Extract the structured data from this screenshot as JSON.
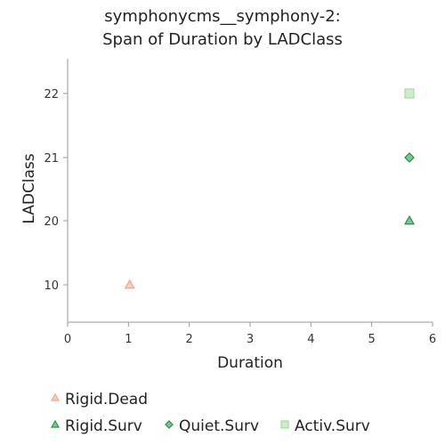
{
  "chart_data": {
    "type": "scatter",
    "title": [
      "symphonycms__symphony-2:",
      "Span of Duration by LADClass"
    ],
    "xlabel": "Duration",
    "ylabel": "LADClass",
    "xlim": [
      0,
      6
    ],
    "x_ticks": [
      "0",
      "1",
      "2",
      "3",
      "4",
      "5",
      "6"
    ],
    "y_categories": [
      "10",
      "20",
      "21",
      "22"
    ],
    "grid": false,
    "legend_position": "bottom",
    "series": [
      {
        "name": "Rigid.Dead",
        "marker": "triangle",
        "color": "#f4a582",
        "points": [
          {
            "x": 1.02,
            "y": "10"
          }
        ]
      },
      {
        "name": "Rigid.Surv",
        "marker": "triangle",
        "color": "#1a9641",
        "points": [
          {
            "x": 5.62,
            "y": "20"
          }
        ]
      },
      {
        "name": "Quiet.Surv",
        "marker": "diamond",
        "color": "#1a9641",
        "points": [
          {
            "x": 5.62,
            "y": "21"
          }
        ]
      },
      {
        "name": "Activ.Surv",
        "marker": "square",
        "color": "#a6dba0",
        "points": [
          {
            "x": 5.62,
            "y": "22"
          }
        ]
      }
    ]
  }
}
